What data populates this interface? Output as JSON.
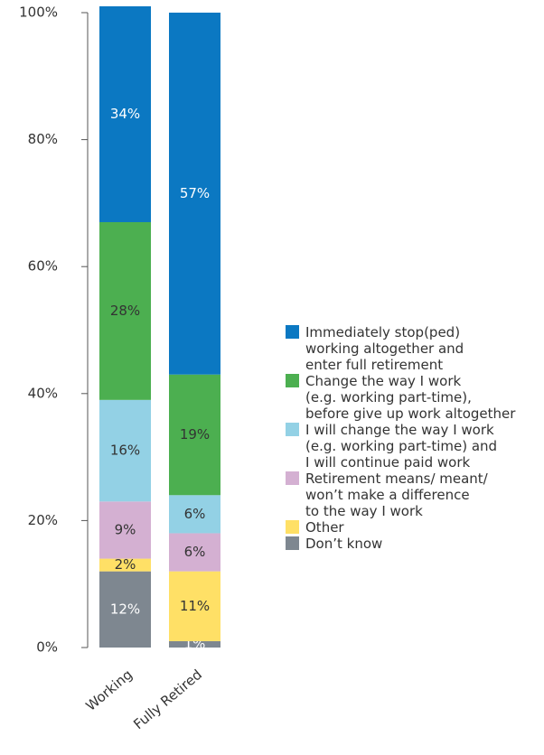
{
  "chart_data": {
    "type": "stacked_bar",
    "categories": [
      "Working",
      "Fully Retired"
    ],
    "series": [
      {
        "name": "Don’t know",
        "color": "#7e8790",
        "label_color": "#ffffff",
        "values": [
          12,
          1
        ],
        "value_labels": [
          "12%",
          "1%"
        ]
      },
      {
        "name": "Other",
        "color": "#ffe066",
        "label_color": "#333333",
        "values": [
          2,
          11
        ],
        "value_labels": [
          "2%",
          "11%"
        ]
      },
      {
        "name": "Retirement means/ meant/\nwon’t make a difference\nto the way I work",
        "color": "#d4b0d2",
        "label_color": "#333333",
        "values": [
          9,
          6
        ],
        "value_labels": [
          "9%",
          "6%"
        ]
      },
      {
        "name": "I will change the way I work\n(e.g. working part-time) and\nI will continue paid work",
        "color": "#93d1e5",
        "label_color": "#333333",
        "values": [
          16,
          6
        ],
        "value_labels": [
          "16%",
          "6%"
        ]
      },
      {
        "name": "Change the way I work\n(e.g. working part-time),\nbefore give up work altogether",
        "color": "#4caf50",
        "label_color": "#333333",
        "values": [
          28,
          19
        ],
        "value_labels": [
          "28%",
          "19%"
        ]
      },
      {
        "name": "Immediately stop(ped)\nworking altogether and\nenter full retirement",
        "color": "#0b78c2",
        "label_color": "#ffffff",
        "values": [
          34,
          57
        ],
        "value_labels": [
          "34%",
          "57%"
        ]
      }
    ],
    "ylim": [
      0,
      100
    ],
    "yticks": [
      {
        "value": 0,
        "label": "0%"
      },
      {
        "value": 20,
        "label": "20%"
      },
      {
        "value": 40,
        "label": "40%"
      },
      {
        "value": 60,
        "label": "60%"
      },
      {
        "value": 80,
        "label": "80%"
      },
      {
        "value": 100,
        "label": "100%"
      }
    ],
    "legend": "right"
  }
}
